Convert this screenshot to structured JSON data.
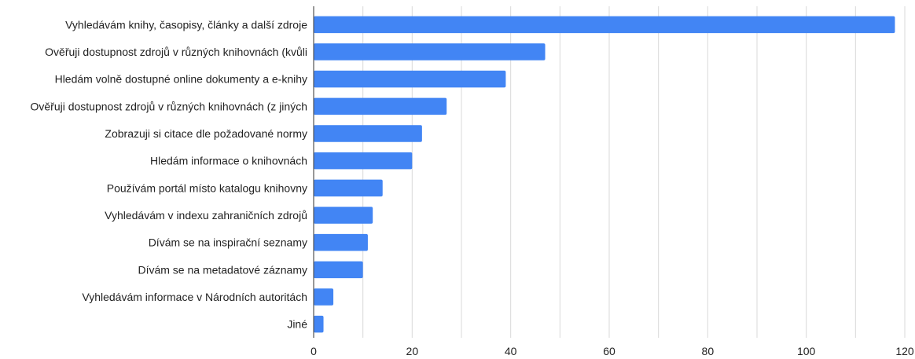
{
  "chart_data": {
    "type": "bar",
    "orientation": "horizontal",
    "categories": [
      "Vyhledávám knihy, časopisy, články a další zdroje",
      "Ověřuji dostupnost zdrojů v různých knihovnách (kvůli",
      "Hledám volně dostupné online dokumenty a e-knihy",
      "Ověřuji dostupnost zdrojů v různých knihovnách (z jiných",
      "Zobrazuji si citace dle požadované normy",
      "Hledám informace o knihovnách",
      "Používám portál místo katalogu knihovny",
      "Vyhledávám v indexu zahraničních zdrojů",
      "Dívám se na inspirační seznamy",
      "Dívám se na metadatové záznamy",
      "Vyhledávám informace v Národních autoritách",
      "Jiné"
    ],
    "values": [
      118,
      47,
      39,
      27,
      22,
      20,
      14,
      12,
      11,
      10,
      4,
      2
    ],
    "xlim": [
      0,
      120
    ],
    "x_ticks": [
      0,
      20,
      40,
      60,
      80,
      100,
      120
    ],
    "grid": true,
    "bar_color": "#4285f4",
    "title": "",
    "xlabel": "",
    "ylabel": ""
  }
}
